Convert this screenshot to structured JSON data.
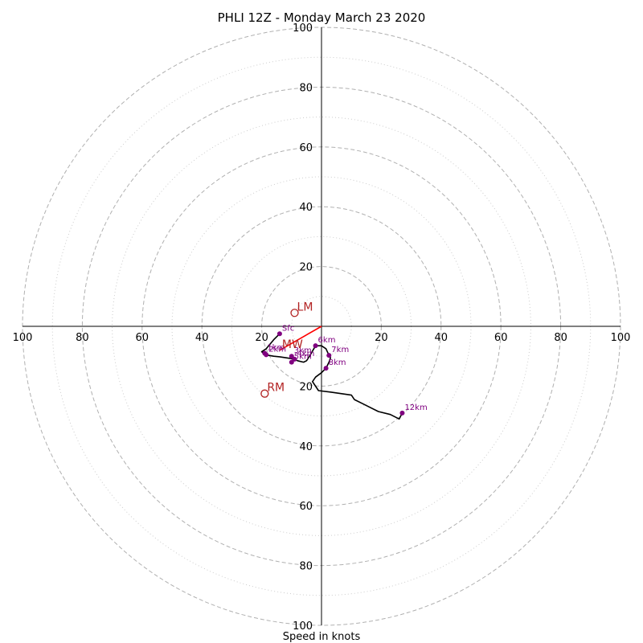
{
  "chart_data": {
    "type": "hodograph",
    "title": "PHLI 12Z - Monday March 23 2020",
    "xlabel": "Speed in knots",
    "axis_limit": 100,
    "tick_values": [
      20,
      40,
      60,
      80,
      100
    ],
    "rings": {
      "dashed": [
        20,
        40,
        60,
        80,
        100
      ],
      "dotted": [
        10,
        30,
        50,
        70,
        90
      ]
    },
    "colors": {
      "trace": "#000000",
      "height_marker": "#800080",
      "storm_motion": "#b22222",
      "mean_wind_vector": "#ff0000",
      "ring": "#b0b0b0",
      "axes": "#000000"
    },
    "trace": [
      [
        -14,
        -2.5
      ],
      [
        -16,
        -4.5
      ],
      [
        -18.5,
        -7.5
      ],
      [
        -20,
        -8.5
      ],
      [
        -19,
        -9.5
      ],
      [
        -16,
        -10
      ],
      [
        -14,
        -10.2
      ],
      [
        -12,
        -10.5
      ],
      [
        -10,
        -10.8
      ],
      [
        -8,
        -11.5
      ],
      [
        -6,
        -12
      ],
      [
        -5,
        -11.5
      ],
      [
        -4,
        -10
      ],
      [
        -2,
        -6.5
      ],
      [
        0,
        -6.5
      ],
      [
        1.5,
        -7.5
      ],
      [
        2.5,
        -9.7
      ],
      [
        3,
        -10.5
      ],
      [
        2.5,
        -12
      ],
      [
        1.5,
        -14
      ],
      [
        0,
        -15.5
      ],
      [
        -2,
        -17
      ],
      [
        -3,
        -18.5
      ],
      [
        -1,
        -21.5
      ],
      [
        3,
        -22
      ],
      [
        10,
        -23
      ],
      [
        11,
        -24.5
      ],
      [
        14,
        -26
      ],
      [
        19,
        -28.5
      ],
      [
        23,
        -29.5
      ],
      [
        26,
        -31
      ],
      [
        27,
        -29
      ]
    ],
    "height_markers": [
      {
        "label": "Sfc",
        "u": -14,
        "v": -2.5
      },
      {
        "label": "1km",
        "u": -19,
        "v": -9
      },
      {
        "label": "2km",
        "u": -18.5,
        "v": -9.5
      },
      {
        "label": "3km",
        "u": -10,
        "v": -10
      },
      {
        "label": "4km",
        "u": -9,
        "v": -11
      },
      {
        "label": "5km",
        "u": -10,
        "v": -12
      },
      {
        "label": "6km",
        "u": -2,
        "v": -6.5
      },
      {
        "label": "7km",
        "u": 2.5,
        "v": -9.7
      },
      {
        "label": "8km",
        "u": 1.5,
        "v": -14
      },
      {
        "label": "12km",
        "u": 27,
        "v": -29
      }
    ],
    "storm_motion": [
      {
        "label": "LM",
        "u": -9,
        "v": 4.5
      },
      {
        "label": "RM",
        "u": -19,
        "v": -22.5
      },
      {
        "label": "MW",
        "u": -14,
        "v": -8
      }
    ],
    "mean_wind_vector": {
      "from": [
        0,
        0
      ],
      "to": [
        -14,
        -8
      ]
    }
  }
}
